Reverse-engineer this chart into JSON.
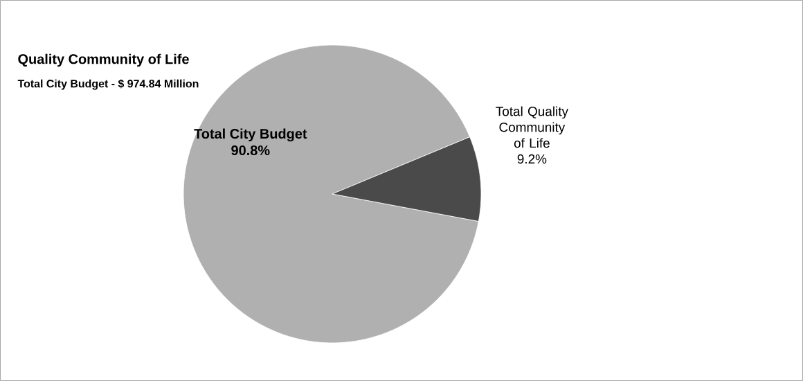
{
  "chart_data": {
    "type": "pie",
    "title": "Quality Community of Life",
    "subtitle": "Total City Budget - $  974.84 Million",
    "categories": [
      "Total City Budget",
      "Total Quality Community of Life"
    ],
    "values": [
      90.8,
      9.2
    ],
    "value_labels": [
      "90.8%",
      "9.2%"
    ],
    "colors": [
      "#b0b0b0",
      "#4a4a4a"
    ]
  }
}
